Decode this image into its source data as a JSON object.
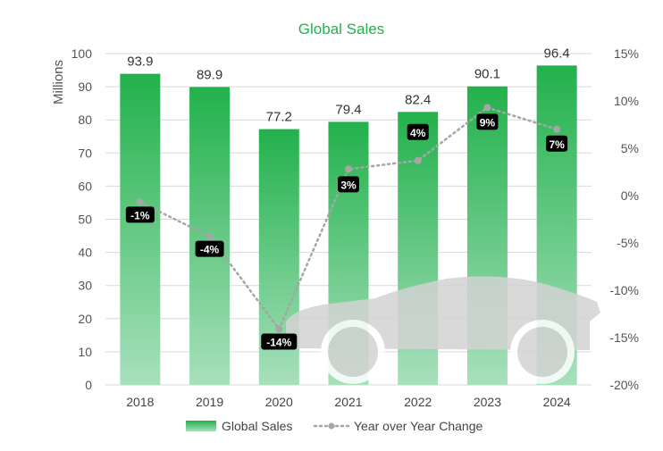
{
  "chart_data": {
    "type": "bar",
    "title": "Global Sales",
    "ylabel": "Millions",
    "ylim": [
      0,
      100
    ],
    "yticks": [
      "0",
      "10",
      "20",
      "30",
      "40",
      "50",
      "60",
      "70",
      "80",
      "90",
      "100"
    ],
    "y2lim": [
      -20,
      15
    ],
    "y2ticks": [
      "-20%",
      "-15%",
      "-10%",
      "-5%",
      "0%",
      "5%",
      "10%",
      "15%"
    ],
    "categories": [
      "2018",
      "2019",
      "2020",
      "2021",
      "2022",
      "2023",
      "2024"
    ],
    "series": [
      {
        "name": "Global Sales",
        "type": "bar",
        "axis": "left",
        "values": [
          93.9,
          89.9,
          77.2,
          79.4,
          82.4,
          90.1,
          96.4
        ],
        "labels": [
          "93.9",
          "89.9",
          "77.2",
          "79.4",
          "82.4",
          "90.1",
          "96.4"
        ]
      },
      {
        "name": "Year over Year Change",
        "type": "line",
        "style": "dotted",
        "axis": "right",
        "values": [
          -0.7,
          -4.3,
          -14.1,
          2.8,
          3.7,
          9.3,
          7.0
        ],
        "labels": [
          "-1%",
          "-4%",
          "-14%",
          "3%",
          "4%",
          "9%",
          "7%"
        ]
      }
    ],
    "colors": {
      "title": "#22b14c",
      "bar_top": "#22b14c",
      "bar_bottom": "#a8e0bc",
      "line": "#a6a6a6",
      "label_bg": "#000000",
      "grid": "#d9d9d9",
      "car": "#d3d3d3"
    },
    "grid": true,
    "legend_position": "bottom",
    "decoration_icon": "car-silhouette-icon"
  }
}
